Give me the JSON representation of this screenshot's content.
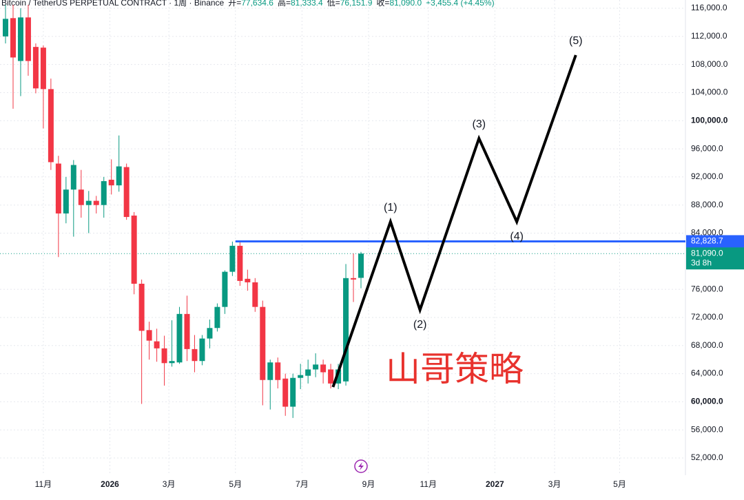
{
  "header": {
    "symbol": "Bitcoin / TetherUS PERPETUAL CONTRACT · 1周 · Binance",
    "stats": [
      {
        "label": "开=",
        "value": "77,634.6"
      },
      {
        "label": "高=",
        "value": "81,333.4"
      },
      {
        "label": "低=",
        "value": "76,151.9"
      },
      {
        "label": "收=",
        "value": "81,090.0"
      }
    ],
    "change": "+3,455.4 (+4.45%)"
  },
  "chart_data": {
    "type": "candlestick",
    "x": [
      0,
      1,
      2,
      3,
      4,
      5,
      6,
      7,
      8,
      9,
      10,
      11,
      12,
      13,
      14,
      15,
      16,
      17,
      18,
      19,
      20,
      21,
      22,
      23,
      24,
      25,
      26,
      27,
      28,
      29,
      30,
      31,
      32,
      33,
      34,
      35,
      36,
      37,
      38,
      39,
      40,
      41,
      42,
      43,
      44,
      45,
      46,
      47
    ],
    "open": [
      112000,
      114600,
      108500,
      114700,
      110500,
      110400,
      104500,
      93900,
      86800,
      90200,
      90200,
      88000,
      88600,
      88000,
      91600,
      90800,
      93400,
      86500,
      76800,
      70200,
      68600,
      67600,
      65500,
      65600,
      72500,
      67500,
      65800,
      69000,
      70500,
      73500,
      78500,
      82200,
      77500,
      77000,
      73500,
      63100,
      65600,
      63300,
      59300,
      63400,
      63700,
      64600,
      65300,
      64600,
      62600,
      62900,
      77600,
      77634.6
    ],
    "high": [
      116500,
      116500,
      116000,
      116500,
      111000,
      110700,
      106000,
      95000,
      92000,
      94400,
      93000,
      90000,
      89300,
      92000,
      94500,
      97900,
      93900,
      87000,
      77400,
      71400,
      70400,
      69400,
      71600,
      73500,
      75100,
      69500,
      69500,
      71700,
      74000,
      78700,
      82800,
      82900,
      78800,
      77600,
      74400,
      66000,
      66300,
      64000,
      64000,
      65400,
      66000,
      66900,
      66000,
      65400,
      65400,
      79600,
      81100,
      81333.4
    ],
    "low": [
      111000,
      101700,
      103500,
      106400,
      103900,
      98900,
      93000,
      80600,
      85400,
      83500,
      86200,
      84000,
      86800,
      86200,
      89500,
      89900,
      85900,
      75300,
      59700,
      66000,
      65700,
      62300,
      65000,
      65400,
      65800,
      64200,
      65200,
      67600,
      70000,
      72500,
      77900,
      76500,
      75800,
      72800,
      59500,
      58900,
      61900,
      58000,
      57700,
      61800,
      62600,
      63500,
      62600,
      61900,
      61800,
      62300,
      74200,
      76151.9
    ],
    "close": [
      114500,
      109000,
      114700,
      108500,
      104600,
      104500,
      94100,
      86800,
      90200,
      93700,
      88000,
      88600,
      88000,
      91400,
      90800,
      93500,
      86300,
      76800,
      70100,
      68700,
      67600,
      65500,
      65800,
      72500,
      67500,
      65800,
      69000,
      70500,
      73500,
      78500,
      82200,
      77200,
      77000,
      73500,
      63100,
      65600,
      63100,
      59300,
      63400,
      63800,
      64600,
      65300,
      64200,
      62600,
      64600,
      77600,
      77400,
      81090
    ],
    "up_color": "#089981",
    "down_color": "#f23645",
    "xlim": [
      -0.73,
      89.9
    ],
    "xticks": [
      {
        "value": 5.0,
        "label": "11月"
      },
      {
        "value": 13.8,
        "label": "2026"
      },
      {
        "value": 21.6,
        "label": "3月"
      },
      {
        "value": 30.4,
        "label": "5月"
      },
      {
        "value": 39.2,
        "label": "7月"
      },
      {
        "value": 48.0,
        "label": "9月"
      },
      {
        "value": 55.9,
        "label": "11月"
      },
      {
        "value": 64.7,
        "label": "2027"
      },
      {
        "value": 72.6,
        "label": "3月"
      },
      {
        "value": 81.2,
        "label": "5月"
      }
    ],
    "ylim": [
      49550,
      117180
    ],
    "yticks": [
      {
        "value": 116000,
        "label": "116,000.0"
      },
      {
        "value": 112000,
        "label": "112,000.0"
      },
      {
        "value": 108000,
        "label": "108,000.0"
      },
      {
        "value": 104000,
        "label": "104,000.0"
      },
      {
        "value": 100000,
        "label": "100,000.0"
      },
      {
        "value": 96000,
        "label": "96,000.0"
      },
      {
        "value": 92000,
        "label": "92,000.0"
      },
      {
        "value": 88000,
        "label": "88,000.0"
      },
      {
        "value": 84000,
        "label": "84,000.0"
      },
      {
        "value": 76000,
        "label": "76,000.0"
      },
      {
        "value": 72000,
        "label": "72,000.0"
      },
      {
        "value": 68000,
        "label": "68,000.0"
      },
      {
        "value": 64000,
        "label": "64,000.0"
      },
      {
        "value": 60000,
        "label": "60,000.0"
      },
      {
        "value": 56000,
        "label": "56,000.0"
      },
      {
        "value": 52000,
        "label": "52,000.0"
      }
    ],
    "grid": true,
    "hline": {
      "x": 30.4,
      "value": 82828.7,
      "label": "82,828.7",
      "color": "#2962ff"
    },
    "last_price": {
      "value": 81090,
      "label": "81,090.0",
      "countdown": "3d 8h"
    },
    "wave": {
      "x": [
        43.3,
        50.9,
        54.8,
        62.6,
        67.6,
        75.4
      ],
      "values": [
        62096,
        85620,
        73073,
        97479,
        85620,
        109339
      ],
      "labels": [
        null,
        "(1)",
        "(2)",
        "(3)",
        "(4)",
        "(5)"
      ]
    },
    "watermark": "山哥策略"
  }
}
